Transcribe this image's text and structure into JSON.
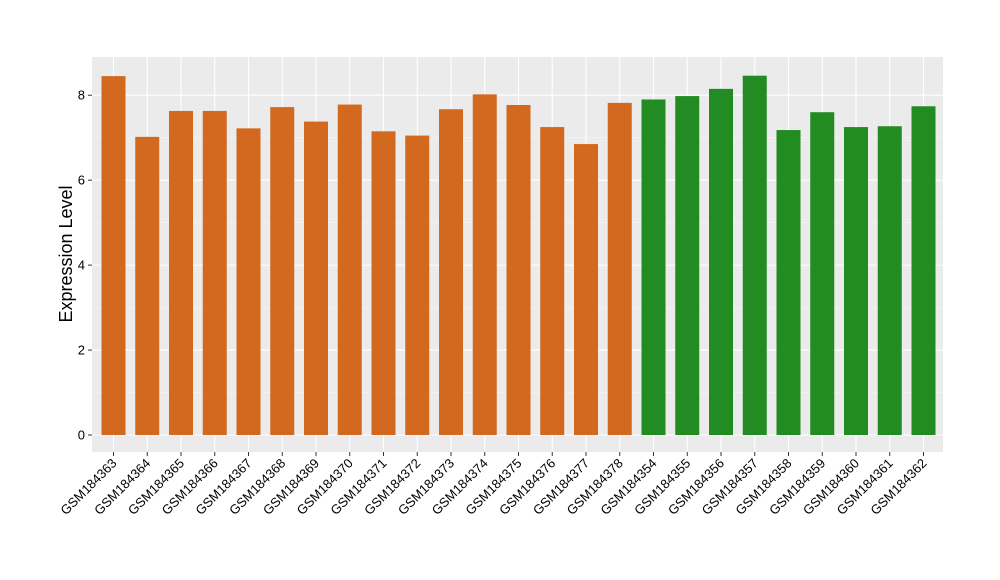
{
  "chart_data": {
    "type": "bar",
    "title": "",
    "xlabel": "",
    "ylabel": "Expression Level",
    "ylim": [
      -0.4,
      8.9
    ],
    "yticks": [
      0,
      2,
      4,
      6,
      8
    ],
    "grid": true,
    "categories": [
      "GSM184363",
      "GSM184364",
      "GSM184365",
      "GSM184366",
      "GSM184367",
      "GSM184368",
      "GSM184369",
      "GSM184370",
      "GSM184371",
      "GSM184372",
      "GSM184373",
      "GSM184374",
      "GSM184375",
      "GSM184376",
      "GSM184377",
      "GSM184378",
      "GSM184354",
      "GSM184355",
      "GSM184356",
      "GSM184357",
      "GSM184358",
      "GSM184359",
      "GSM184360",
      "GSM184361",
      "GSM184362"
    ],
    "values": [
      8.45,
      7.02,
      7.63,
      7.63,
      7.22,
      7.72,
      7.38,
      7.78,
      7.15,
      7.05,
      7.67,
      8.02,
      7.77,
      7.25,
      6.85,
      7.82,
      7.9,
      7.98,
      8.15,
      8.46,
      7.18,
      7.6,
      7.25,
      7.27,
      7.74
    ],
    "groups": [
      0,
      0,
      0,
      0,
      0,
      0,
      0,
      0,
      0,
      0,
      0,
      0,
      0,
      0,
      0,
      0,
      1,
      1,
      1,
      1,
      1,
      1,
      1,
      1,
      1
    ],
    "colors": {
      "group_0": "#d2691e",
      "group_1": "#228b22",
      "panel_background": "#ebebeb",
      "grid_major": "#ffffff",
      "grid_minor": "#f5f5f5"
    }
  }
}
